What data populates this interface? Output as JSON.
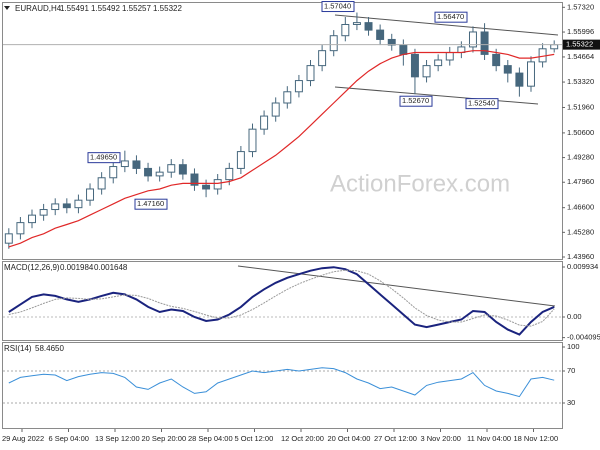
{
  "chart_data": [
    {
      "type": "candlestick",
      "title": "EURAUD,H4",
      "quote": [
        1.55491,
        1.55492,
        1.55257,
        1.55322
      ],
      "last": 1.55322,
      "watermark": "ActionForex.com",
      "x_labels": [
        "29 Aug 2022",
        "6 Sep 04:00",
        "13 Sep 12:00",
        "20 Sep 20:00",
        "28 Sep 04:00",
        "5 Oct 12:00",
        "12 Oct 20:00",
        "20 Oct 04:00",
        "27 Oct 12:00",
        "3 Nov 20:00",
        "11 Nov 04:00",
        "18 Nov 12:00"
      ],
      "open": [
        1.447,
        1.452,
        1.458,
        1.462,
        1.465,
        1.468,
        1.466,
        1.47,
        1.476,
        1.482,
        1.488,
        1.491,
        1.487,
        1.483,
        1.485,
        1.489,
        1.484,
        1.478,
        1.476,
        1.481,
        1.487,
        1.496,
        1.508,
        1.515,
        1.522,
        1.528,
        1.534,
        1.542,
        1.55,
        1.558,
        1.564,
        1.565,
        1.561,
        1.556,
        1.553,
        1.548,
        1.536,
        1.542,
        1.545,
        1.549,
        1.552,
        1.56,
        1.548,
        1.542,
        1.538,
        1.531,
        1.544,
        1.551
      ],
      "high": [
        1.455,
        1.461,
        1.465,
        1.468,
        1.471,
        1.471,
        1.473,
        1.479,
        1.485,
        1.491,
        1.4965,
        1.494,
        1.49,
        1.488,
        1.492,
        1.492,
        1.487,
        1.481,
        1.484,
        1.49,
        1.499,
        1.511,
        1.518,
        1.525,
        1.531,
        1.537,
        1.545,
        1.553,
        1.561,
        1.568,
        1.5704,
        1.568,
        1.564,
        1.559,
        1.556,
        1.551,
        1.545,
        1.548,
        1.552,
        1.555,
        1.563,
        1.5647,
        1.551,
        1.545,
        1.541,
        1.547,
        1.554,
        1.5555
      ],
      "low": [
        1.444,
        1.449,
        1.455,
        1.459,
        1.462,
        1.463,
        1.463,
        1.467,
        1.473,
        1.479,
        1.485,
        1.484,
        1.48,
        1.48,
        1.482,
        1.481,
        1.475,
        1.4716,
        1.473,
        1.478,
        1.484,
        1.493,
        1.505,
        1.512,
        1.519,
        1.525,
        1.531,
        1.539,
        1.547,
        1.555,
        1.561,
        1.558,
        1.553,
        1.55,
        1.542,
        1.5267,
        1.533,
        1.539,
        1.542,
        1.546,
        1.549,
        1.545,
        1.539,
        1.533,
        1.5254,
        1.528,
        1.541,
        1.549
      ],
      "close": [
        1.452,
        1.458,
        1.462,
        1.465,
        1.468,
        1.466,
        1.47,
        1.476,
        1.482,
        1.488,
        1.491,
        1.487,
        1.483,
        1.485,
        1.489,
        1.484,
        1.478,
        1.476,
        1.481,
        1.487,
        1.496,
        1.508,
        1.515,
        1.522,
        1.528,
        1.534,
        1.542,
        1.55,
        1.558,
        1.564,
        1.565,
        1.561,
        1.556,
        1.553,
        1.548,
        1.536,
        1.542,
        1.545,
        1.549,
        1.552,
        1.56,
        1.548,
        1.542,
        1.538,
        1.531,
        1.544,
        1.551,
        1.5532
      ],
      "color": "#46677d",
      "series": [
        {
          "color": "#e02828",
          "values": [
            1.445,
            1.447,
            1.45,
            1.452,
            1.455,
            1.457,
            1.459,
            1.462,
            1.465,
            1.468,
            1.471,
            1.473,
            1.475,
            1.476,
            1.478,
            1.479,
            1.479,
            1.479,
            1.479,
            1.48,
            1.482,
            1.486,
            1.49,
            1.494,
            1.499,
            1.504,
            1.51,
            1.516,
            1.522,
            1.528,
            1.534,
            1.539,
            1.543,
            1.546,
            1.548,
            1.549,
            1.549,
            1.549,
            1.549,
            1.549,
            1.55,
            1.55,
            1.549,
            1.548,
            1.546,
            1.546,
            1.547,
            1.548
          ]
        }
      ],
      "annotations": [
        {
          "value": 1.5704,
          "label": "1.57040"
        },
        {
          "value": 1.5647,
          "label": "1.56470"
        },
        {
          "value": 1.5267,
          "label": "1.52670"
        },
        {
          "value": 1.5254,
          "label": "1.52540"
        },
        {
          "value": 1.4965,
          "label": "1.49650"
        },
        {
          "value": 1.4716,
          "label": "1.47160"
        }
      ],
      "ylim": [
        1.438,
        1.5755
      ],
      "yticks": [
        {
          "value": 1.5732,
          "label": "1.57320"
        },
        {
          "value": 1.55996,
          "label": "1.55996"
        },
        {
          "value": 1.54664,
          "label": "1.54664"
        },
        {
          "value": 1.5332,
          "label": "1.53320"
        },
        {
          "value": 1.5196,
          "label": "1.51960"
        },
        {
          "value": 1.506,
          "label": "1.50600"
        },
        {
          "value": 1.4928,
          "label": "1.49280"
        },
        {
          "value": 1.4796,
          "label": "1.47960"
        },
        {
          "value": 1.466,
          "label": "1.46600"
        },
        {
          "value": 1.4528,
          "label": "1.45280"
        },
        {
          "value": 1.4396,
          "label": "1.43960"
        }
      ]
    },
    {
      "type": "line",
      "title": "MACD(12,26,9)",
      "current": [
        0.001984,
        0.001648
      ],
      "series": [
        {
          "color": "#1a237e",
          "values": [
            0.001,
            0.0025,
            0.004,
            0.0045,
            0.0042,
            0.0035,
            0.003,
            0.0035,
            0.0042,
            0.0048,
            0.0045,
            0.0035,
            0.002,
            0.001,
            0.0015,
            0.0012,
            0.0,
            -0.0008,
            -0.0005,
            0.0005,
            0.002,
            0.004,
            0.0055,
            0.0068,
            0.0078,
            0.0085,
            0.0092,
            0.0097,
            0.0099,
            0.0095,
            0.0085,
            0.0065,
            0.0045,
            0.0025,
            0.0005,
            -0.0015,
            -0.002,
            -0.0015,
            -0.001,
            -0.0005,
            0.0012,
            0.001,
            -0.001,
            -0.0025,
            -0.0035,
            -0.001,
            0.001,
            0.002
          ]
        },
        {
          "color": "#9a9a9a",
          "values": [
            0.0005,
            0.001,
            0.0018,
            0.0027,
            0.0035,
            0.0038,
            0.0037,
            0.0035,
            0.0036,
            0.004,
            0.0044,
            0.0043,
            0.0037,
            0.0028,
            0.0021,
            0.0017,
            0.0011,
            0.0004,
            -0.0002,
            -0.0002,
            0.0004,
            0.0015,
            0.0028,
            0.0042,
            0.0055,
            0.0066,
            0.0075,
            0.0083,
            0.009,
            0.0093,
            0.0092,
            0.0085,
            0.0072,
            0.0056,
            0.0038,
            0.0018,
            0.0003,
            -0.0006,
            -0.001,
            -0.001,
            -0.0003,
            0.0004,
            0.0002,
            -0.0006,
            -0.0016,
            -0.0018,
            -0.0009,
            0.0016
          ]
        }
      ],
      "ylim": [
        -0.00457,
        0.01093
      ],
      "yticks": [
        0.009934,
        {
          "value": 0,
          "label": "0.00"
        },
        -0.004095
      ]
    },
    {
      "type": "line",
      "title": "RSI(14)",
      "current": {
        "value": 58.465,
        "label": "58.4650"
      },
      "series": [
        {
          "color": "#3a8fd8",
          "values": [
            55,
            62,
            64,
            66,
            65,
            58,
            63,
            66,
            68,
            67,
            62,
            50,
            47,
            55,
            60,
            50,
            42,
            44,
            55,
            60,
            65,
            70,
            68,
            70,
            72,
            70,
            72,
            74,
            73,
            68,
            60,
            55,
            48,
            50,
            45,
            40,
            52,
            56,
            58,
            60,
            68,
            52,
            45,
            42,
            38,
            60,
            62,
            58.5
          ]
        }
      ],
      "ylim": [
        0,
        100
      ],
      "yticks": [
        100,
        70,
        30
      ]
    }
  ]
}
